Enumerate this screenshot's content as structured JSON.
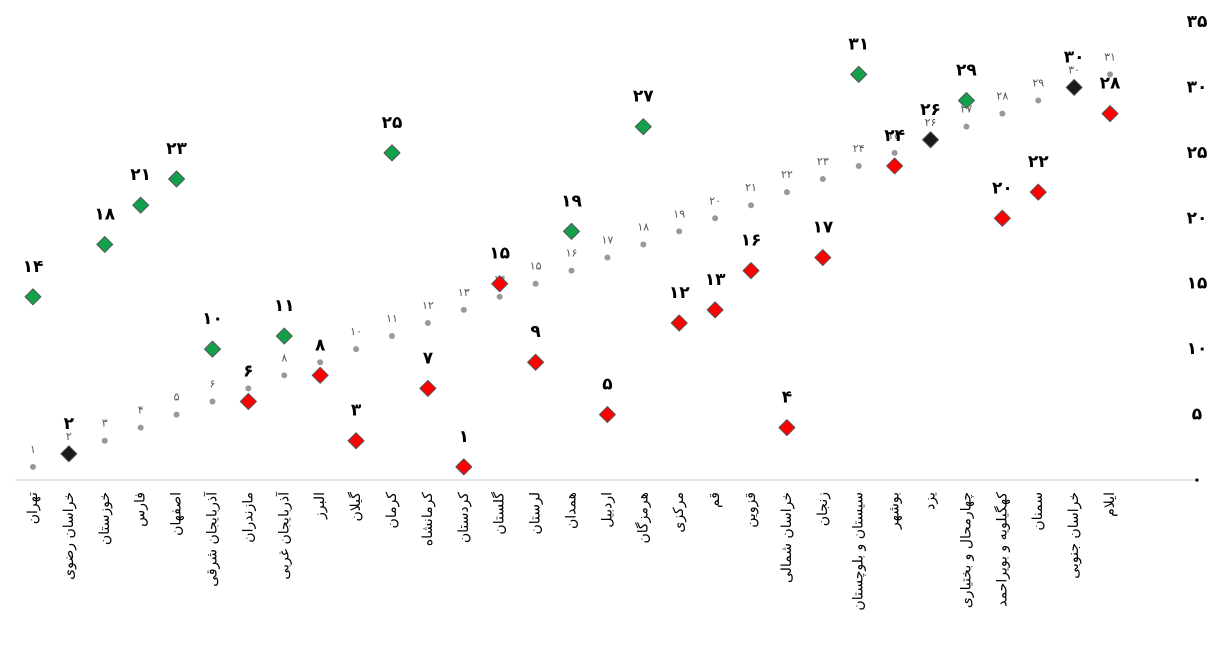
{
  "chart_data": {
    "type": "dot",
    "categories": [
      "تهران",
      "خراسان رضوی",
      "خوزستان",
      "فارس",
      "اصفهان",
      "آذربایجان شرقی",
      "مازندران",
      "آذربایجان غربی",
      "البرز",
      "گیلان",
      "کرمان",
      "کرمانشاه",
      "کردستان",
      "گلستان",
      "لرستان",
      "همدان",
      "اردبیل",
      "هرمزگان",
      "مرکزی",
      "قم",
      "قزوین",
      "خراسان شمالی",
      "زنجان",
      "سیستان و بلوچستان",
      "بوشهر",
      "یزد",
      "چهارمحال و بختیاری",
      "کهگیلویه و بویراحمد",
      "سمنان",
      "خراسان جنوبی",
      "ایلام"
    ],
    "series": [
      {
        "color": "#999999",
        "marker": "dot",
        "values": [
          1,
          2,
          3,
          4,
          5,
          6,
          7,
          8,
          9,
          10,
          11,
          12,
          13,
          14,
          15,
          16,
          17,
          18,
          19,
          20,
          21,
          22,
          23,
          24,
          25,
          26,
          27,
          28,
          29,
          30,
          31
        ],
        "value_labels": [
          "۱",
          "۲",
          "۳",
          "۴",
          "۵",
          "۶",
          "۷",
          "۸",
          "۹",
          "۱۰",
          "۱۱",
          "۱۲",
          "۱۳",
          "۱۴",
          "۱۵",
          "۱۶",
          "۱۷",
          "۱۸",
          "۱۹",
          "۲۰",
          "۲۱",
          "۲۲",
          "۲۳",
          "۲۴",
          "۲۵",
          "۲۶",
          "۲۷",
          "۲۸",
          "۲۹",
          "۳۰",
          "۳۱"
        ]
      },
      {
        "marker": "diamond",
        "values": [
          14,
          2,
          18,
          21,
          23,
          10,
          6,
          11,
          8,
          3,
          25,
          7,
          1,
          15,
          9,
          19,
          5,
          27,
          12,
          13,
          16,
          4,
          17,
          31,
          24,
          26,
          29,
          20,
          22,
          30,
          28
        ],
        "value_labels": [
          "۱۴",
          "۲",
          "۱۸",
          "۲۱",
          "۲۳",
          "۱۰",
          "۶",
          "۱۱",
          "۸",
          "۳",
          "۲۵",
          "۷",
          "۱",
          "۱۵",
          "۹",
          "۱۹",
          "۵",
          "۲۷",
          "۱۲",
          "۱۳",
          "۱۶",
          "۴",
          "۱۷",
          "۳۱",
          "۲۴",
          "۲۶",
          "۲۹",
          "۲۰",
          "۲۲",
          "۳۰",
          "۲۸"
        ],
        "colors": [
          "#12a04a",
          "#1a1a1a",
          "#12a04a",
          "#12a04a",
          "#12a04a",
          "#12a04a",
          "#ff0000",
          "#12a04a",
          "#ff0000",
          "#ff0000",
          "#12a04a",
          "#ff0000",
          "#ff0000",
          "#ff0000",
          "#ff0000",
          "#12a04a",
          "#ff0000",
          "#12a04a",
          "#ff0000",
          "#ff0000",
          "#ff0000",
          "#ff0000",
          "#ff0000",
          "#12a04a",
          "#ff0000",
          "#1a1a1a",
          "#12a04a",
          "#ff0000",
          "#ff0000",
          "#1a1a1a",
          "#ff0000"
        ]
      }
    ],
    "ylim": [
      0,
      35
    ],
    "yticks": [
      {
        "value": 0,
        "label": "۰"
      },
      {
        "value": 5,
        "label": "۵"
      },
      {
        "value": 10,
        "label": "۱۰"
      },
      {
        "value": 15,
        "label": "۱۵"
      },
      {
        "value": 20,
        "label": "۲۰"
      },
      {
        "value": 25,
        "label": "۲۵"
      },
      {
        "value": 30,
        "label": "۳۰"
      },
      {
        "value": 35,
        "label": "۳۵"
      }
    ]
  }
}
